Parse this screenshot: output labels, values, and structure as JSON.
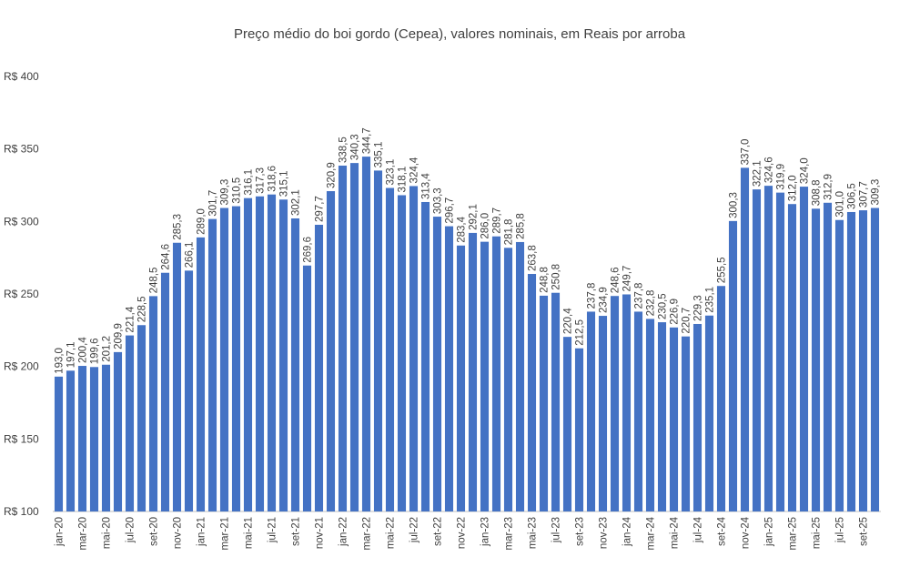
{
  "chart_data": {
    "type": "bar",
    "title": "Preço médio do boi gordo (Cepea), valores nominais, em Reais por arroba",
    "categories": [
      "jan-20",
      null,
      "mar-20",
      null,
      "mai-20",
      null,
      "jul-20",
      null,
      "set-20",
      null,
      "nov-20",
      null,
      "jan-21",
      null,
      "mar-21",
      null,
      "mai-21",
      null,
      "jul-21",
      null,
      "set-21",
      null,
      "nov-21",
      null,
      "jan-22",
      null,
      "mar-22",
      null,
      "mai-22",
      null,
      "jul-22",
      null,
      "set-22",
      null,
      "nov-22",
      null,
      "jan-23",
      null,
      "mar-23",
      null,
      "mai-23",
      null,
      "jul-23",
      null,
      "set-23",
      null,
      "nov-23",
      null,
      "jan-24",
      null,
      "mar-24",
      null,
      "mai-24",
      null,
      "jul-24",
      null,
      "set-24",
      null,
      "nov-24",
      null,
      "jan-25",
      null,
      "mar-25",
      null,
      "mai-25",
      null,
      "jul-25",
      null,
      "set-25",
      null
    ],
    "values": [
      193.0,
      197.1,
      200.4,
      199.6,
      201.2,
      209.9,
      221.4,
      228.5,
      248.5,
      264.6,
      285.3,
      266.1,
      289.0,
      301.7,
      309.3,
      310.5,
      316.1,
      317.3,
      318.6,
      315.1,
      302.1,
      269.6,
      297.7,
      320.9,
      338.5,
      340.3,
      344.7,
      335.1,
      323.1,
      318.1,
      324.4,
      313.4,
      303.3,
      296.7,
      283.4,
      292.1,
      286.0,
      289.7,
      281.8,
      285.8,
      263.8,
      248.8,
      250.8,
      220.4,
      212.5,
      237.8,
      234.9,
      248.6,
      249.7,
      237.8,
      232.8,
      230.5,
      226.9,
      220.7,
      229.3,
      235.1,
      255.5,
      300.3,
      337.0,
      322.1,
      324.6,
      319.9,
      312.0,
      324.0,
      308.8,
      312.9,
      301.0,
      306.5,
      307.7,
      309.3
    ],
    "value_labels": [
      "193,0",
      "197,1",
      "200,4",
      "199,6",
      "201,2",
      "209,9",
      "221,4",
      "228,5",
      "248,5",
      "264,6",
      "285,3",
      "266,1",
      "289,0",
      "301,7",
      "309,3",
      "310,5",
      "316,1",
      "317,3",
      "318,6",
      "315,1",
      "302,1",
      "269,6",
      "297,7",
      "320,9",
      "338,5",
      "340,3",
      "344,7",
      "335,1",
      "323,1",
      "318,1",
      "324,4",
      "313,4",
      "303,3",
      "296,7",
      "283,4",
      "292,1",
      "286,0",
      "289,7",
      "281,8",
      "285,8",
      "263,8",
      "248,8",
      "250,8",
      "220,4",
      "212,5",
      "237,8",
      "234,9",
      "248,6",
      "249,7",
      "237,8",
      "232,8",
      "230,5",
      "226,9",
      "220,7",
      "229,3",
      "235,1",
      "255,5",
      "300,3",
      "337,0",
      "322,1",
      "324,6",
      "319,9",
      "312,0",
      "324,0",
      "308,8",
      "312,9",
      "301,0",
      "306,5",
      "307,7",
      "309,3"
    ],
    "color": "#4472c4",
    "ylim": [
      100,
      400
    ],
    "yticks": [
      {
        "value": 100,
        "label": "R$ 100"
      },
      {
        "value": 150,
        "label": "R$ 150"
      },
      {
        "value": 200,
        "label": "R$ 200"
      },
      {
        "value": 250,
        "label": "R$ 250"
      },
      {
        "value": 300,
        "label": "R$ 300"
      },
      {
        "value": 350,
        "label": "R$ 350"
      },
      {
        "value": 400,
        "label": "R$ 400"
      }
    ]
  }
}
